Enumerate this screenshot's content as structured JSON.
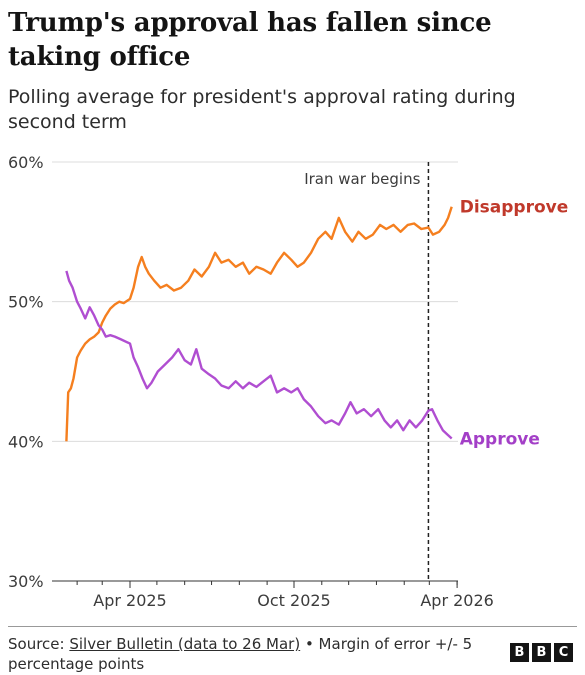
{
  "title": "Trump's approval has fallen since taking office",
  "subtitle": "Polling average for president's approval rating during second term",
  "footer": {
    "source_prefix": "Source: ",
    "source_link": "Silver Bulletin (data to 26 Mar)",
    "source_suffix": " • Margin of error +/- 5 percentage points"
  },
  "brand": [
    "B",
    "B",
    "C"
  ],
  "colors": {
    "disapprove": "#f57f1f",
    "approve": "#b04ed1",
    "disapprove_label": "#c0392b",
    "approve_label": "#a33fc7"
  },
  "chart_data": {
    "type": "line",
    "ylim": [
      30,
      60
    ],
    "xlim": [
      "2025-01-20",
      "2026-03-26"
    ],
    "y_ticks": [
      "60%",
      "50%",
      "40%",
      "30%"
    ],
    "y_tick_values": [
      60,
      50,
      40,
      30
    ],
    "x_ticks": [
      "Apr 2025",
      "Oct 2025",
      "Apr 2026"
    ],
    "x_tick_dates": [
      "2025-04-01",
      "2025-10-01",
      "2026-04-01"
    ],
    "grid": true,
    "annotation": {
      "label": "Iran war begins",
      "date": "2026-02-28"
    },
    "series": [
      {
        "name": "Disapprove",
        "points": [
          [
            "2025-01-20",
            40.0
          ],
          [
            "2025-01-22",
            43.5
          ],
          [
            "2025-01-25",
            43.8
          ],
          [
            "2025-01-28",
            44.5
          ],
          [
            "2025-02-01",
            46.0
          ],
          [
            "2025-02-05",
            46.5
          ],
          [
            "2025-02-10",
            47.0
          ],
          [
            "2025-02-15",
            47.3
          ],
          [
            "2025-02-20",
            47.5
          ],
          [
            "2025-02-25",
            47.8
          ],
          [
            "2025-03-01",
            48.5
          ],
          [
            "2025-03-05",
            49.0
          ],
          [
            "2025-03-10",
            49.5
          ],
          [
            "2025-03-15",
            49.8
          ],
          [
            "2025-03-20",
            50.0
          ],
          [
            "2025-03-25",
            49.9
          ],
          [
            "2025-04-01",
            50.2
          ],
          [
            "2025-04-05",
            51.0
          ],
          [
            "2025-04-10",
            52.5
          ],
          [
            "2025-04-14",
            53.2
          ],
          [
            "2025-04-18",
            52.5
          ],
          [
            "2025-04-22",
            52.0
          ],
          [
            "2025-04-28",
            51.5
          ],
          [
            "2025-05-05",
            51.0
          ],
          [
            "2025-05-12",
            51.2
          ],
          [
            "2025-05-20",
            50.8
          ],
          [
            "2025-05-28",
            51.0
          ],
          [
            "2025-06-05",
            51.5
          ],
          [
            "2025-06-12",
            52.3
          ],
          [
            "2025-06-20",
            51.8
          ],
          [
            "2025-06-28",
            52.5
          ],
          [
            "2025-07-05",
            53.5
          ],
          [
            "2025-07-12",
            52.8
          ],
          [
            "2025-07-20",
            53.0
          ],
          [
            "2025-07-28",
            52.5
          ],
          [
            "2025-08-05",
            52.8
          ],
          [
            "2025-08-12",
            52.0
          ],
          [
            "2025-08-20",
            52.5
          ],
          [
            "2025-08-28",
            52.3
          ],
          [
            "2025-09-05",
            52.0
          ],
          [
            "2025-09-12",
            52.8
          ],
          [
            "2025-09-20",
            53.5
          ],
          [
            "2025-09-28",
            53.0
          ],
          [
            "2025-10-05",
            52.5
          ],
          [
            "2025-10-12",
            52.8
          ],
          [
            "2025-10-20",
            53.5
          ],
          [
            "2025-10-28",
            54.5
          ],
          [
            "2025-11-05",
            55.0
          ],
          [
            "2025-11-12",
            54.5
          ],
          [
            "2025-11-20",
            56.0
          ],
          [
            "2025-11-27",
            55.0
          ],
          [
            "2025-12-05",
            54.3
          ],
          [
            "2025-12-12",
            55.0
          ],
          [
            "2025-12-20",
            54.5
          ],
          [
            "2025-12-28",
            54.8
          ],
          [
            "2026-01-05",
            55.5
          ],
          [
            "2026-01-12",
            55.2
          ],
          [
            "2026-01-20",
            55.5
          ],
          [
            "2026-01-28",
            55.0
          ],
          [
            "2026-02-05",
            55.5
          ],
          [
            "2026-02-12",
            55.6
          ],
          [
            "2026-02-20",
            55.2
          ],
          [
            "2026-02-28",
            55.3
          ],
          [
            "2026-03-05",
            54.8
          ],
          [
            "2026-03-12",
            55.0
          ],
          [
            "2026-03-18",
            55.5
          ],
          [
            "2026-03-22",
            56.0
          ],
          [
            "2026-03-26",
            56.8
          ]
        ]
      },
      {
        "name": "Approve",
        "points": [
          [
            "2025-01-20",
            52.2
          ],
          [
            "2025-01-23",
            51.5
          ],
          [
            "2025-01-27",
            51.0
          ],
          [
            "2025-02-01",
            50.0
          ],
          [
            "2025-02-05",
            49.5
          ],
          [
            "2025-02-10",
            48.8
          ],
          [
            "2025-02-15",
            49.6
          ],
          [
            "2025-02-20",
            49.0
          ],
          [
            "2025-02-25",
            48.3
          ],
          [
            "2025-03-01",
            48.0
          ],
          [
            "2025-03-05",
            47.5
          ],
          [
            "2025-03-10",
            47.6
          ],
          [
            "2025-03-15",
            47.5
          ],
          [
            "2025-03-22",
            47.3
          ],
          [
            "2025-04-01",
            47.0
          ],
          [
            "2025-04-05",
            46.0
          ],
          [
            "2025-04-10",
            45.3
          ],
          [
            "2025-04-15",
            44.5
          ],
          [
            "2025-04-20",
            43.8
          ],
          [
            "2025-04-25",
            44.2
          ],
          [
            "2025-05-02",
            45.0
          ],
          [
            "2025-05-10",
            45.5
          ],
          [
            "2025-05-18",
            46.0
          ],
          [
            "2025-05-25",
            46.6
          ],
          [
            "2025-06-01",
            45.8
          ],
          [
            "2025-06-08",
            45.5
          ],
          [
            "2025-06-14",
            46.6
          ],
          [
            "2025-06-20",
            45.2
          ],
          [
            "2025-06-28",
            44.8
          ],
          [
            "2025-07-05",
            44.5
          ],
          [
            "2025-07-12",
            44.0
          ],
          [
            "2025-07-20",
            43.8
          ],
          [
            "2025-07-28",
            44.3
          ],
          [
            "2025-08-05",
            43.8
          ],
          [
            "2025-08-12",
            44.2
          ],
          [
            "2025-08-20",
            43.9
          ],
          [
            "2025-08-28",
            44.3
          ],
          [
            "2025-09-05",
            44.7
          ],
          [
            "2025-09-12",
            43.5
          ],
          [
            "2025-09-20",
            43.8
          ],
          [
            "2025-09-28",
            43.5
          ],
          [
            "2025-10-05",
            43.8
          ],
          [
            "2025-10-12",
            43.0
          ],
          [
            "2025-10-20",
            42.5
          ],
          [
            "2025-10-28",
            41.8
          ],
          [
            "2025-11-05",
            41.3
          ],
          [
            "2025-11-12",
            41.5
          ],
          [
            "2025-11-20",
            41.2
          ],
          [
            "2025-11-27",
            42.0
          ],
          [
            "2025-12-03",
            42.8
          ],
          [
            "2025-12-10",
            42.0
          ],
          [
            "2025-12-18",
            42.3
          ],
          [
            "2025-12-26",
            41.8
          ],
          [
            "2026-01-03",
            42.3
          ],
          [
            "2026-01-10",
            41.5
          ],
          [
            "2026-01-17",
            41.0
          ],
          [
            "2026-01-24",
            41.5
          ],
          [
            "2026-01-31",
            40.8
          ],
          [
            "2026-02-07",
            41.5
          ],
          [
            "2026-02-14",
            41.0
          ],
          [
            "2026-02-21",
            41.5
          ],
          [
            "2026-02-28",
            42.2
          ],
          [
            "2026-03-04",
            42.3
          ],
          [
            "2026-03-10",
            41.5
          ],
          [
            "2026-03-16",
            40.8
          ],
          [
            "2026-03-21",
            40.5
          ],
          [
            "2026-03-26",
            40.2
          ]
        ]
      }
    ]
  }
}
